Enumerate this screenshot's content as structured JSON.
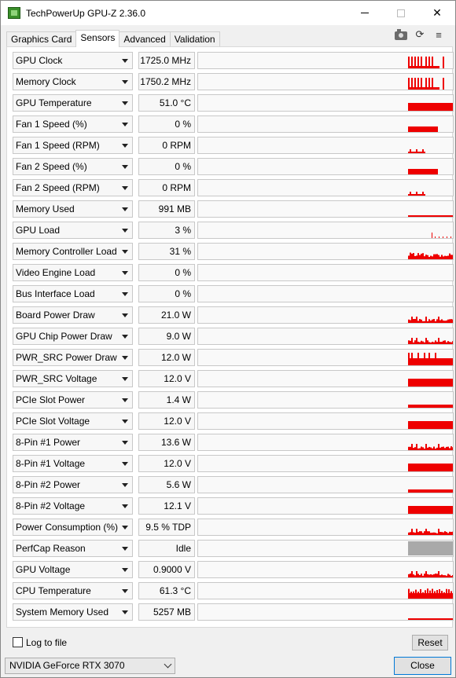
{
  "window": {
    "title": "TechPowerUp GPU-Z 2.36.0",
    "minimize_label": "",
    "close_symbol": "✕"
  },
  "tabs": [
    {
      "label": "Graphics Card",
      "active": false
    },
    {
      "label": "Sensors",
      "active": true
    },
    {
      "label": "Advanced",
      "active": false
    },
    {
      "label": "Validation",
      "active": false
    }
  ],
  "toolbar": {
    "icons": [
      "camera-icon",
      "refresh-icon",
      "menu-icon"
    ],
    "refresh_glyph": "⟳",
    "menu_glyph": "≡"
  },
  "sensors": [
    {
      "name": "GPU Clock",
      "value": "1725.0 MHz",
      "graph": "spiky"
    },
    {
      "name": "Memory Clock",
      "value": "1750.2 MHz",
      "graph": "spiky"
    },
    {
      "name": "GPU Temperature",
      "value": "51.0 °C",
      "graph": "band"
    },
    {
      "name": "Fan 1 Speed (%)",
      "value": "0 %",
      "graph": "short"
    },
    {
      "name": "Fan 1 Speed (RPM)",
      "value": "0 RPM",
      "graph": "ticks"
    },
    {
      "name": "Fan 2 Speed (%)",
      "value": "0 %",
      "graph": "short"
    },
    {
      "name": "Fan 2 Speed (RPM)",
      "value": "0 RPM",
      "graph": "ticks"
    },
    {
      "name": "Memory Used",
      "value": "991 MB",
      "graph": "line"
    },
    {
      "name": "GPU Load",
      "value": "3 %",
      "graph": "dots"
    },
    {
      "name": "Memory Controller Load",
      "value": "31 %",
      "graph": "noise"
    },
    {
      "name": "Video Engine Load",
      "value": "0 %",
      "graph": "none"
    },
    {
      "name": "Bus Interface Load",
      "value": "0 %",
      "graph": "none"
    },
    {
      "name": "Board Power Draw",
      "value": "21.0 W",
      "graph": "lownoise"
    },
    {
      "name": "GPU Chip Power Draw",
      "value": "9.0 W",
      "graph": "lownoise"
    },
    {
      "name": "PWR_SRC Power Draw",
      "value": "12.0 W",
      "graph": "spikyband"
    },
    {
      "name": "PWR_SRC Voltage",
      "value": "12.0 V",
      "graph": "band"
    },
    {
      "name": "PCIe Slot Power",
      "value": "1.4 W",
      "graph": "thin"
    },
    {
      "name": "PCIe Slot Voltage",
      "value": "12.0 V",
      "graph": "band"
    },
    {
      "name": "8-Pin #1 Power",
      "value": "13.6 W",
      "graph": "lownoise"
    },
    {
      "name": "8-Pin #1 Voltage",
      "value": "12.0 V",
      "graph": "band"
    },
    {
      "name": "8-Pin #2 Power",
      "value": "5.6 W",
      "graph": "thin"
    },
    {
      "name": "8-Pin #2 Voltage",
      "value": "12.1 V",
      "graph": "band"
    },
    {
      "name": "Power Consumption (%)",
      "value": "9.5 % TDP",
      "graph": "lownoise"
    },
    {
      "name": "PerfCap Reason",
      "value": "Idle",
      "graph": "gray"
    },
    {
      "name": "GPU Voltage",
      "value": "0.9000 V",
      "graph": "lownoise"
    },
    {
      "name": "CPU Temperature",
      "value": "61.3 °C",
      "graph": "noisyband"
    },
    {
      "name": "System Memory Used",
      "value": "5257 MB",
      "graph": "line"
    }
  ],
  "footer": {
    "log_to_file_label": "Log to file",
    "log_to_file_checked": false,
    "reset_label": "Reset",
    "gpu_selected": "NVIDIA GeForce RTX 3070",
    "close_label": "Close"
  },
  "colors": {
    "graph": "#ee0000",
    "graph_idle": "#a9a9a9"
  }
}
